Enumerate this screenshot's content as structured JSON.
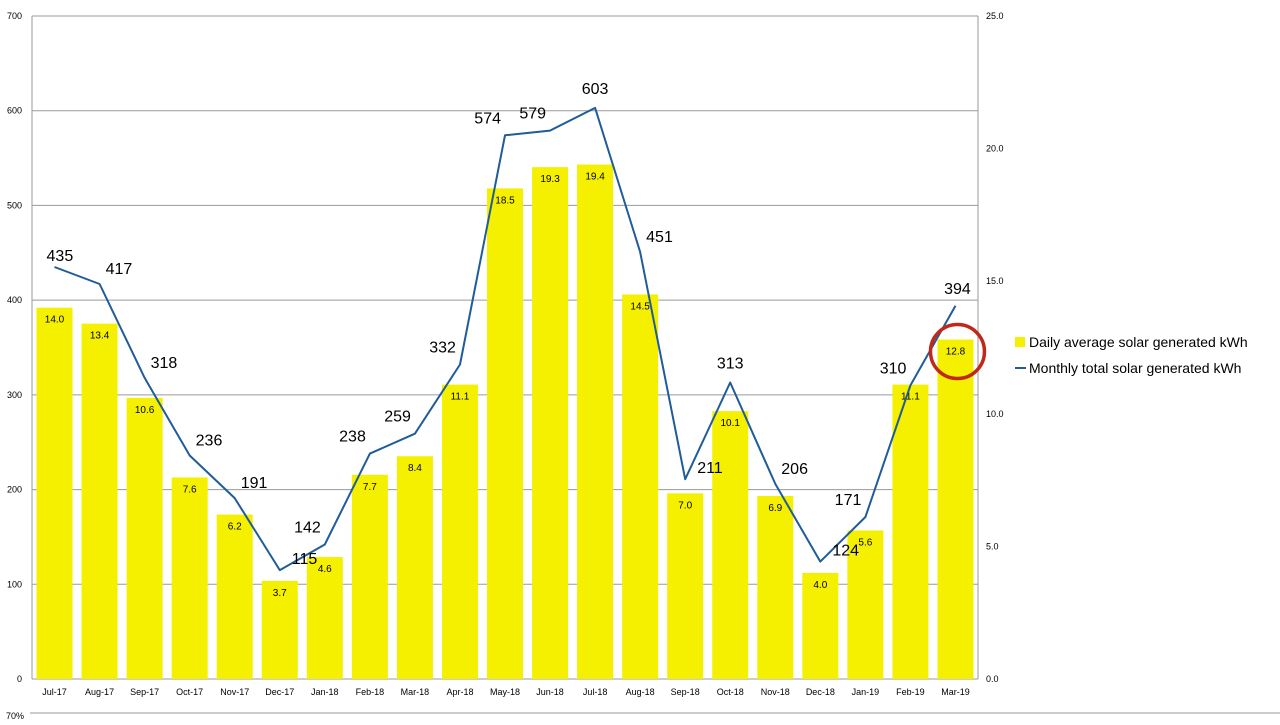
{
  "chart_data": {
    "type": "bar",
    "categories": [
      "Jul-17",
      "Aug-17",
      "Sep-17",
      "Oct-17",
      "Nov-17",
      "Dec-17",
      "Jan-18",
      "Feb-18",
      "Mar-18",
      "Apr-18",
      "May-18",
      "Jun-18",
      "Jul-18",
      "Aug-18",
      "Sep-18",
      "Oct-18",
      "Nov-18",
      "Dec-18",
      "Jan-19",
      "Feb-19",
      "Mar-19"
    ],
    "series": [
      {
        "name": "Daily average solar generated kWh",
        "type": "bar",
        "axis": "right",
        "values": [
          14.0,
          13.4,
          10.6,
          7.6,
          6.2,
          3.7,
          4.6,
          7.7,
          8.4,
          11.1,
          18.5,
          19.3,
          19.4,
          14.5,
          7.0,
          10.1,
          6.9,
          4.0,
          5.6,
          11.1,
          12.8
        ],
        "labels": [
          "14.0",
          "13.4",
          "10.6",
          "7.6",
          "6.2",
          "3.7",
          "4.6",
          "7.7",
          "8.4",
          "11.1",
          "18.5",
          "19.3",
          "19.4",
          "14.5",
          "7.0",
          "10.1",
          "6.9",
          "4.0",
          "5.6",
          "11.1",
          "12.8"
        ],
        "color": "#f5ef00"
      },
      {
        "name": "Monthly total solar generated kWh",
        "type": "line",
        "axis": "left",
        "values": [
          435,
          417,
          318,
          236,
          191,
          115,
          142,
          238,
          259,
          332,
          574,
          579,
          603,
          451,
          211,
          313,
          206,
          124,
          171,
          310,
          394
        ],
        "labels": [
          "435",
          "417",
          "318",
          "236",
          "191",
          "115",
          "142",
          "238",
          "259",
          "332",
          "574",
          "579",
          "603",
          "451",
          "211",
          "313",
          "206",
          "124",
          "171",
          "310",
          "394"
        ],
        "color": "#1f5c99"
      }
    ],
    "y_left": {
      "range": [
        0,
        700
      ],
      "ticks": [
        "0",
        "100",
        "200",
        "300",
        "400",
        "500",
        "600",
        "700"
      ]
    },
    "y_right": {
      "range": [
        0,
        25
      ],
      "ticks": [
        "0.0",
        "5.0",
        "10.0",
        "15.0",
        "20.0",
        "25.0"
      ]
    },
    "grid": true,
    "legend_position": "right",
    "highlight_category": "Mar-19",
    "highlight_color": "#c0281c",
    "partial_axis_label": "70%"
  }
}
